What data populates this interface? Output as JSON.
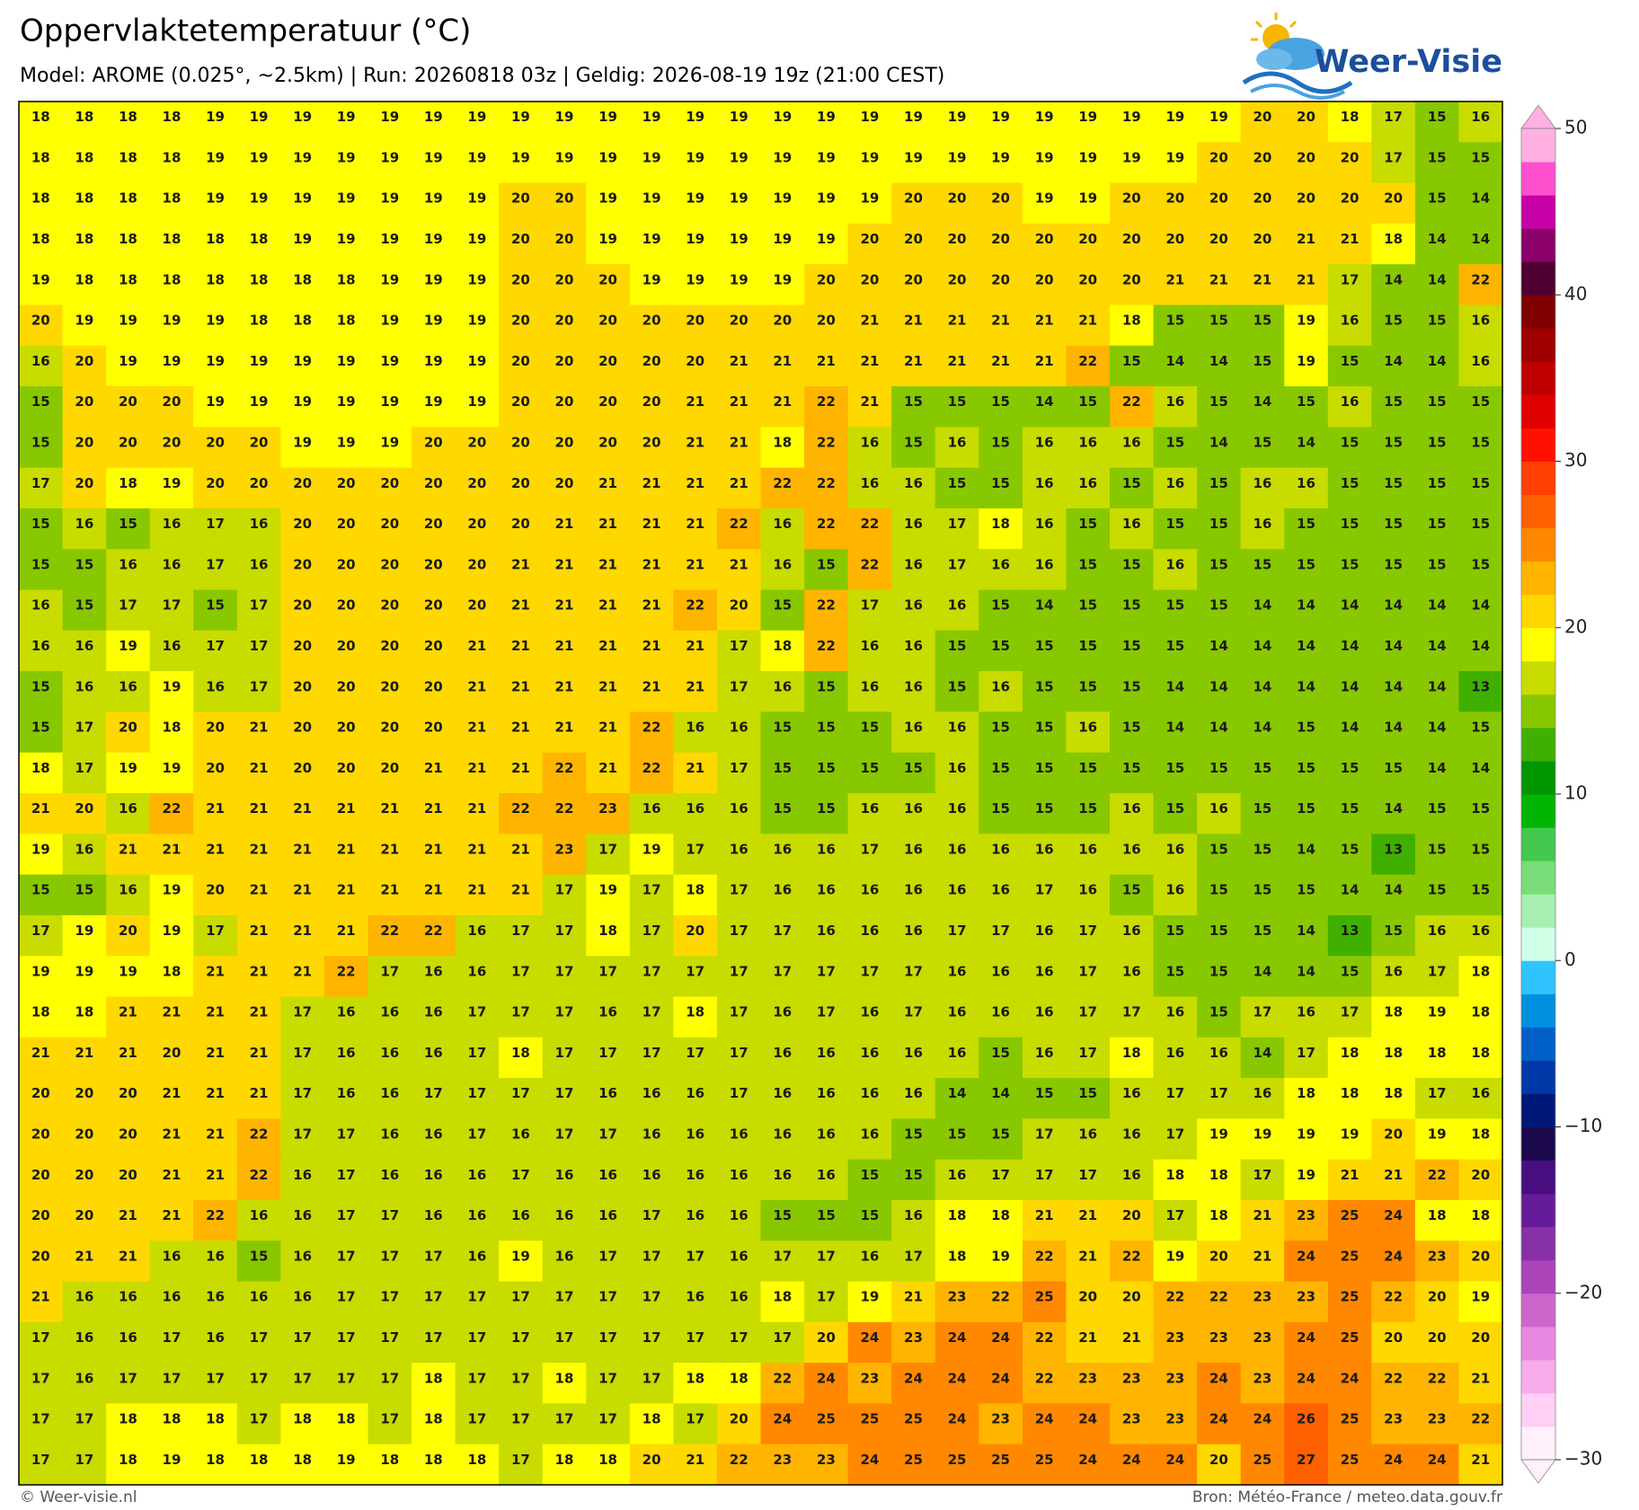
{
  "header": {
    "title": "Oppervlaktetemperatuur (°C)",
    "subtitle": "Model: AROME (0.025°, ~2.5km)  |  Run: 20260818 03z  |  Geldig: 2026-08-19 19z (21:00 CEST)",
    "logo": "Weer-Visie"
  },
  "map": {
    "values": [
      [
        18,
        18,
        18,
        18,
        19,
        19,
        19,
        19,
        19,
        19,
        19,
        19,
        19,
        19,
        19,
        19,
        19,
        19,
        19,
        19,
        19,
        19,
        19,
        19,
        19,
        19,
        19,
        19,
        20,
        20,
        18,
        17,
        15,
        16
      ],
      [
        18,
        18,
        18,
        18,
        19,
        19,
        19,
        19,
        19,
        19,
        19,
        19,
        19,
        19,
        19,
        19,
        19,
        19,
        19,
        19,
        19,
        19,
        19,
        19,
        19,
        19,
        19,
        20,
        20,
        20,
        20,
        17,
        15,
        15
      ],
      [
        18,
        18,
        18,
        18,
        19,
        19,
        19,
        19,
        19,
        19,
        19,
        20,
        20,
        19,
        19,
        19,
        19,
        19,
        19,
        19,
        20,
        20,
        20,
        19,
        19,
        20,
        20,
        20,
        20,
        20,
        20,
        20,
        15,
        14
      ],
      [
        18,
        18,
        18,
        18,
        18,
        18,
        19,
        19,
        19,
        19,
        19,
        20,
        20,
        19,
        19,
        19,
        19,
        19,
        19,
        20,
        20,
        20,
        20,
        20,
        20,
        20,
        20,
        20,
        20,
        21,
        21,
        18,
        14,
        14
      ],
      [
        19,
        18,
        18,
        18,
        18,
        18,
        18,
        18,
        19,
        19,
        19,
        20,
        20,
        20,
        19,
        19,
        19,
        19,
        20,
        20,
        20,
        20,
        20,
        20,
        20,
        20,
        21,
        21,
        21,
        21,
        17,
        14,
        14,
        22
      ],
      [
        20,
        19,
        19,
        19,
        19,
        18,
        18,
        18,
        19,
        19,
        19,
        20,
        20,
        20,
        20,
        20,
        20,
        20,
        20,
        21,
        21,
        21,
        21,
        21,
        21,
        18,
        15,
        15,
        15,
        19,
        16,
        15,
        15,
        16
      ],
      [
        16,
        20,
        19,
        19,
        19,
        19,
        19,
        19,
        19,
        19,
        19,
        20,
        20,
        20,
        20,
        20,
        21,
        21,
        21,
        21,
        21,
        21,
        21,
        21,
        22,
        15,
        14,
        14,
        15,
        19,
        15,
        14,
        14,
        16
      ],
      [
        15,
        20,
        20,
        20,
        19,
        19,
        19,
        19,
        19,
        19,
        19,
        20,
        20,
        20,
        20,
        21,
        21,
        21,
        22,
        21,
        15,
        15,
        15,
        14,
        15,
        22,
        16,
        15,
        14,
        15,
        16,
        15,
        15,
        15
      ],
      [
        15,
        20,
        20,
        20,
        20,
        20,
        19,
        19,
        19,
        20,
        20,
        20,
        20,
        20,
        20,
        21,
        21,
        18,
        22,
        16,
        15,
        16,
        15,
        16,
        16,
        16,
        15,
        14,
        15,
        14,
        15,
        15,
        15,
        15
      ],
      [
        17,
        20,
        18,
        19,
        20,
        20,
        20,
        20,
        20,
        20,
        20,
        20,
        20,
        21,
        21,
        21,
        21,
        22,
        22,
        16,
        16,
        15,
        15,
        16,
        16,
        15,
        16,
        15,
        16,
        16,
        15,
        15,
        15,
        15
      ],
      [
        15,
        16,
        15,
        16,
        17,
        16,
        20,
        20,
        20,
        20,
        20,
        20,
        21,
        21,
        21,
        21,
        22,
        16,
        22,
        22,
        16,
        17,
        18,
        16,
        15,
        16,
        15,
        15,
        16,
        15,
        15,
        15,
        15,
        15
      ],
      [
        15,
        15,
        16,
        16,
        17,
        16,
        20,
        20,
        20,
        20,
        20,
        21,
        21,
        21,
        21,
        21,
        21,
        16,
        15,
        22,
        16,
        17,
        16,
        16,
        15,
        15,
        16,
        15,
        15,
        15,
        15,
        15,
        15,
        15
      ],
      [
        16,
        15,
        17,
        17,
        15,
        17,
        20,
        20,
        20,
        20,
        20,
        21,
        21,
        21,
        21,
        22,
        20,
        15,
        22,
        17,
        16,
        16,
        15,
        14,
        15,
        15,
        15,
        15,
        14,
        14,
        14,
        14,
        14,
        14
      ],
      [
        16,
        16,
        19,
        16,
        17,
        17,
        20,
        20,
        20,
        20,
        21,
        21,
        21,
        21,
        21,
        21,
        17,
        18,
        22,
        16,
        16,
        15,
        15,
        15,
        15,
        15,
        15,
        14,
        14,
        14,
        14,
        14,
        14,
        14
      ],
      [
        15,
        16,
        16,
        19,
        16,
        17,
        20,
        20,
        20,
        20,
        21,
        21,
        21,
        21,
        21,
        21,
        17,
        16,
        15,
        16,
        16,
        15,
        16,
        15,
        15,
        15,
        14,
        14,
        14,
        14,
        14,
        14,
        14,
        13
      ],
      [
        15,
        17,
        20,
        18,
        20,
        21,
        20,
        20,
        20,
        20,
        21,
        21,
        21,
        21,
        22,
        16,
        16,
        15,
        15,
        15,
        16,
        16,
        15,
        15,
        16,
        15,
        14,
        14,
        14,
        15,
        14,
        14,
        14,
        15
      ],
      [
        18,
        17,
        19,
        19,
        20,
        21,
        20,
        20,
        20,
        21,
        21,
        21,
        22,
        21,
        22,
        21,
        17,
        15,
        15,
        15,
        15,
        16,
        15,
        15,
        15,
        15,
        15,
        15,
        15,
        15,
        15,
        15,
        14,
        14
      ],
      [
        21,
        20,
        16,
        22,
        21,
        21,
        21,
        21,
        21,
        21,
        21,
        22,
        22,
        23,
        16,
        16,
        16,
        15,
        15,
        16,
        16,
        16,
        15,
        15,
        15,
        16,
        15,
        16,
        15,
        15,
        15,
        14,
        15,
        15
      ],
      [
        19,
        16,
        21,
        21,
        21,
        21,
        21,
        21,
        21,
        21,
        21,
        21,
        23,
        17,
        19,
        17,
        16,
        16,
        16,
        17,
        16,
        16,
        16,
        16,
        16,
        16,
        16,
        15,
        15,
        14,
        15,
        13,
        15,
        15
      ],
      [
        15,
        15,
        16,
        19,
        20,
        21,
        21,
        21,
        21,
        21,
        21,
        21,
        17,
        19,
        17,
        18,
        17,
        16,
        16,
        16,
        16,
        16,
        16,
        17,
        16,
        15,
        16,
        15,
        15,
        15,
        14,
        14,
        15,
        15
      ],
      [
        17,
        19,
        20,
        19,
        17,
        21,
        21,
        21,
        22,
        22,
        16,
        17,
        17,
        18,
        17,
        20,
        17,
        17,
        16,
        16,
        16,
        17,
        17,
        16,
        17,
        16,
        15,
        15,
        15,
        14,
        13,
        15,
        16,
        16
      ],
      [
        19,
        19,
        19,
        18,
        21,
        21,
        21,
        22,
        17,
        16,
        16,
        17,
        17,
        17,
        17,
        17,
        17,
        17,
        17,
        17,
        17,
        16,
        16,
        16,
        17,
        16,
        15,
        15,
        14,
        14,
        15,
        16,
        17,
        18
      ],
      [
        18,
        18,
        21,
        21,
        21,
        21,
        17,
        16,
        16,
        16,
        17,
        17,
        17,
        16,
        17,
        18,
        17,
        16,
        17,
        16,
        17,
        16,
        16,
        16,
        17,
        17,
        16,
        15,
        17,
        16,
        17,
        18,
        19,
        18
      ],
      [
        21,
        21,
        21,
        20,
        21,
        21,
        17,
        16,
        16,
        16,
        17,
        18,
        17,
        17,
        17,
        17,
        17,
        16,
        16,
        16,
        16,
        16,
        15,
        16,
        17,
        18,
        16,
        16,
        14,
        17,
        18,
        18,
        18,
        18
      ],
      [
        20,
        20,
        20,
        21,
        21,
        21,
        17,
        16,
        16,
        17,
        17,
        17,
        17,
        16,
        16,
        16,
        17,
        16,
        16,
        16,
        16,
        14,
        14,
        15,
        15,
        16,
        17,
        17,
        16,
        18,
        18,
        18,
        17,
        16
      ],
      [
        20,
        20,
        20,
        21,
        21,
        22,
        17,
        17,
        16,
        16,
        17,
        16,
        17,
        17,
        16,
        16,
        16,
        16,
        16,
        16,
        15,
        15,
        15,
        17,
        16,
        16,
        17,
        19,
        19,
        19,
        19,
        20,
        19,
        18
      ],
      [
        20,
        20,
        20,
        21,
        21,
        22,
        16,
        17,
        16,
        16,
        16,
        17,
        16,
        16,
        16,
        16,
        16,
        16,
        16,
        15,
        15,
        16,
        17,
        17,
        17,
        16,
        18,
        18,
        17,
        19,
        21,
        21,
        22,
        20
      ],
      [
        20,
        20,
        21,
        21,
        22,
        16,
        16,
        17,
        17,
        16,
        16,
        16,
        16,
        16,
        17,
        16,
        16,
        15,
        15,
        15,
        16,
        18,
        18,
        21,
        21,
        20,
        17,
        18,
        21,
        23,
        25,
        24,
        18,
        18
      ],
      [
        20,
        21,
        21,
        16,
        16,
        15,
        16,
        17,
        17,
        17,
        16,
        19,
        16,
        17,
        17,
        17,
        16,
        17,
        17,
        16,
        17,
        18,
        19,
        22,
        21,
        22,
        19,
        20,
        21,
        24,
        25,
        24,
        23,
        20
      ],
      [
        21,
        16,
        16,
        16,
        16,
        16,
        16,
        17,
        17,
        17,
        17,
        17,
        17,
        17,
        17,
        16,
        16,
        18,
        17,
        19,
        21,
        23,
        22,
        25,
        20,
        20,
        22,
        22,
        23,
        23,
        25,
        22,
        20,
        19
      ],
      [
        17,
        16,
        16,
        17,
        16,
        17,
        17,
        17,
        17,
        17,
        17,
        17,
        17,
        17,
        17,
        17,
        17,
        17,
        20,
        24,
        23,
        24,
        24,
        22,
        21,
        21,
        23,
        23,
        23,
        24,
        25,
        20,
        20,
        20
      ],
      [
        17,
        16,
        17,
        17,
        17,
        17,
        17,
        17,
        17,
        18,
        17,
        17,
        18,
        17,
        17,
        18,
        18,
        22,
        24,
        23,
        24,
        24,
        24,
        22,
        23,
        23,
        23,
        24,
        23,
        24,
        24,
        22,
        22,
        21
      ],
      [
        17,
        17,
        18,
        18,
        18,
        17,
        18,
        18,
        17,
        18,
        17,
        17,
        17,
        17,
        18,
        17,
        20,
        24,
        25,
        25,
        25,
        24,
        23,
        24,
        24,
        23,
        23,
        24,
        24,
        26,
        25,
        23,
        23,
        22
      ],
      [
        17,
        17,
        18,
        19,
        18,
        18,
        18,
        19,
        18,
        18,
        18,
        17,
        18,
        18,
        20,
        21,
        22,
        23,
        23,
        24,
        25,
        25,
        25,
        25,
        24,
        24,
        24,
        20,
        25,
        27,
        25,
        24,
        24,
        21
      ]
    ],
    "colorbar": {
      "ylim": [
        -30,
        50
      ],
      "yticks": [
        50,
        40,
        30,
        20,
        10,
        0,
        {
          "value": -10,
          "label": "−10"
        },
        {
          "value": -20,
          "label": "−20"
        },
        {
          "value": -30,
          "label": "−30"
        }
      ],
      "colors": [
        "#fff0fc",
        "#ffd0f4",
        "#f8acea",
        "#e888e0",
        "#cc66cc",
        "#aa44b8",
        "#8830a8",
        "#661c98",
        "#480e80",
        "#1c0a4c",
        "#001878",
        "#0038a8",
        "#0060c8",
        "#0090e0",
        "#30c4ff",
        "#d0ffe8",
        "#a8f0b0",
        "#78dc78",
        "#44c850",
        "#00b400",
        "#009600",
        "#40b000",
        "#88c800",
        "#c8dc00",
        "#ffff00",
        "#ffd800",
        "#ffb400",
        "#ff8800",
        "#ff6000",
        "#ff4000",
        "#ff1000",
        "#e00000",
        "#c00000",
        "#a00000",
        "#800000",
        "#500030",
        "#8a0068",
        "#c800a8",
        "#ff50d0",
        "#ffb0e0"
      ]
    }
  },
  "footer": {
    "left": "© Weer-visie.nl",
    "right": "Bron: Météo-France / meteo.data.gouv.fr"
  }
}
